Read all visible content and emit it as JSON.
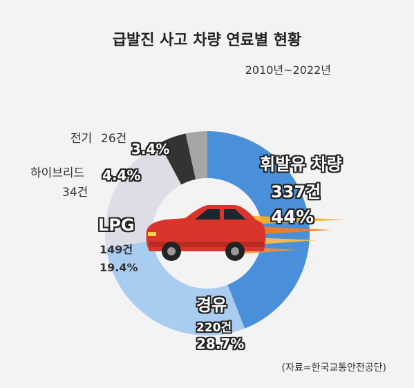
{
  "title": "급발진 사고 차량 연료별 현황",
  "period": "2010년~2022년",
  "source": "(자료=한국교통안전공단)",
  "colors": {
    "gasoline": "#4a8fd9",
    "diesel": "#a9cdf0",
    "lpg": "#dcdde6",
    "hybrid": "#333333",
    "electric": "#a6a6a6",
    "car_body": "#d8362c"
  },
  "chart_data": {
    "type": "pie",
    "title": "급발진 사고 차량 연료별 현황",
    "subtitle": "2010년~2022년",
    "slices": [
      {
        "name": "휘발유 차량",
        "count_label": "337건",
        "percent_label": "44%",
        "value": 44.0,
        "count": 337,
        "color": "#4a8fd9"
      },
      {
        "name": "경유",
        "count_label": "220건",
        "percent_label": "28.7%",
        "value": 28.7,
        "count": 220,
        "color": "#a9cdf0"
      },
      {
        "name": "LPG",
        "count_label": "149건",
        "percent_label": "19.4%",
        "value": 19.4,
        "count": 149,
        "color": "#dcdde6"
      },
      {
        "name": "하이브리드",
        "count_label": "34건",
        "percent_label": "4.4%",
        "value": 4.4,
        "count": 34,
        "color": "#333333"
      },
      {
        "name": "전기",
        "count_label": "26건",
        "percent_label": "3.4%",
        "value": 3.4,
        "count": 26,
        "color": "#a6a6a6"
      }
    ]
  }
}
